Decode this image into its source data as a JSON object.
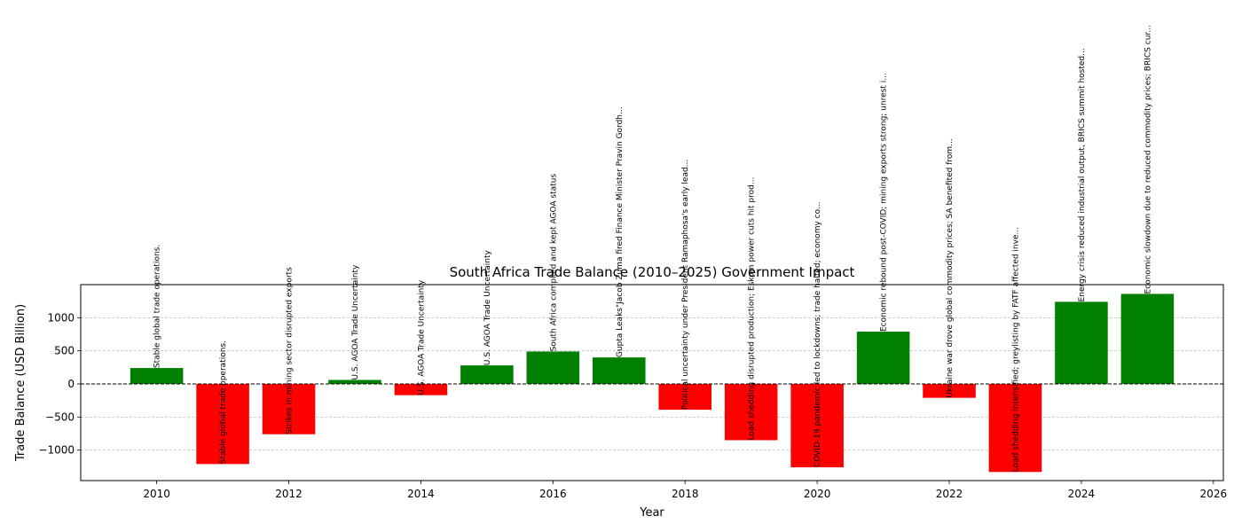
{
  "chart_data": {
    "type": "bar",
    "title": "South Africa Trade Balance (2010–2025)  Government Impact",
    "xlabel": "Year",
    "ylabel": "Trade Balance (USD Billion)",
    "xlim": [
      2008.85,
      2026.15
    ],
    "ylim": [
      -1460,
      1500
    ],
    "xticks": [
      2010,
      2012,
      2014,
      2016,
      2018,
      2020,
      2022,
      2024,
      2026
    ],
    "yticks": [
      -1000,
      -500,
      0,
      500,
      1000
    ],
    "grid": "y-dashed",
    "zero_line": true,
    "positive_color": "#008000",
    "negative_color": "#ff0000",
    "x": [
      2010,
      2011,
      2012,
      2013,
      2014,
      2015,
      2016,
      2017,
      2018,
      2019,
      2020,
      2021,
      2022,
      2023,
      2024,
      2025
    ],
    "values": [
      240,
      -1210,
      -760,
      60,
      -170,
      280,
      490,
      400,
      -390,
      -850,
      -1260,
      790,
      -210,
      -1330,
      1240,
      1360
    ],
    "annotations": [
      "Stable global trade operations.",
      "Stable global trade operations.",
      "Strikes in mining sector disrupted exports",
      "U.S. AGOA Trade Uncertainty",
      "U.S. AGOA Trade Uncertainty",
      "U.S. AGOA Trade Uncertainty",
      "South Africa complied and kept AGOA status",
      "Gupta Leaks\"Jacob Zuma fired Finance Minister Pravin Gordh...",
      "Political uncertainty under President Ramaphosa's early lead...",
      "Load shedding disrupted production; Eskom power cuts hit prod...",
      "COVID-19 pandemic led to lockdowns; trade halted; economy co...",
      "Economic rebound post-COVID; mining exports strong; unrest i...",
      "Ukraine war drove global commodity prices; SA benefited from...",
      "Load shedding intensified; greylisting by FATF affected inve...",
      "Energy crisis reduced industrial output, BRICS summit hosted...",
      "Economic slowdown due to reduced commodity prices; BRICS cur..."
    ]
  }
}
